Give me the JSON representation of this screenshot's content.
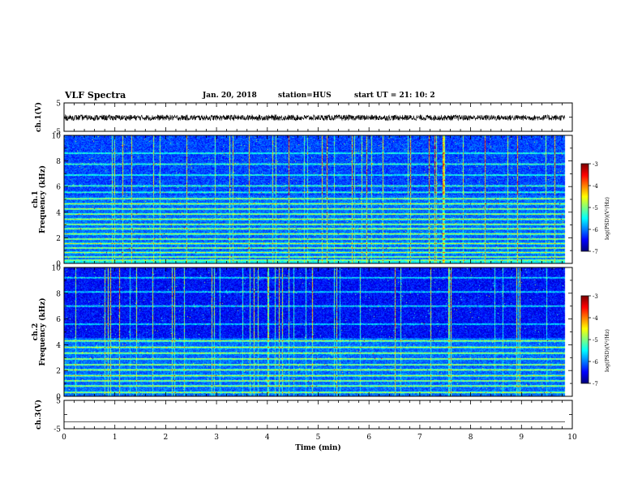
{
  "header": {
    "title": "VLF Spectra",
    "date": "Jan. 20, 2018",
    "station": "station=HUS",
    "start": "start UT =  21: 10: 2"
  },
  "chart_data": [
    {
      "type": "line",
      "name": "waveform-ch1",
      "ylabel": "ch.1(V)",
      "yticks": [
        5,
        -5
      ],
      "ylim": [
        -5,
        5
      ],
      "xlim": [
        0,
        10
      ],
      "x_end": 9.85,
      "level": -0.2,
      "noise": 1.0
    },
    {
      "type": "heatmap",
      "name": "spectrogram-ch1",
      "ylabel_top": "ch.1",
      "ylabel": "Frequency (kHz)",
      "yticks": [
        0,
        2,
        4,
        6,
        8,
        10
      ],
      "ylim": [
        0,
        10
      ],
      "xlim": [
        0,
        10
      ],
      "x_end": 9.85,
      "bands_kHz": [
        0.1,
        0.25,
        0.5,
        0.85,
        1.2,
        1.55,
        1.9,
        2.3,
        2.7,
        3.05,
        3.45,
        3.85,
        4.25,
        4.65,
        5.05,
        5.55,
        6.05,
        6.9,
        7.75,
        8.6
      ],
      "strong_below_kHz": 5.3,
      "colorbar": {
        "label": "log(PSD)(V²/Hz)",
        "ticks": [
          -3,
          -4,
          -5,
          -6,
          -7
        ],
        "range": [
          -7,
          -3
        ]
      }
    },
    {
      "type": "heatmap",
      "name": "spectrogram-ch2",
      "ylabel_top": "ch.2",
      "ylabel": "Frequency (kHz)",
      "yticks": [
        0,
        2,
        4,
        6,
        8,
        10
      ],
      "ylim": [
        0,
        10
      ],
      "xlim": [
        0,
        10
      ],
      "x_end": 9.85,
      "bands_kHz": [
        0.3,
        0.8,
        1.2,
        1.6,
        2.05,
        2.45,
        2.9,
        3.35,
        3.8,
        4.3,
        5.6,
        7.0,
        8.1,
        9.2
      ],
      "strong_below_kHz": 4.5,
      "colorbar": {
        "label": "log(PSD)(V²/Hz)",
        "ticks": [
          -3,
          -4,
          -5,
          -6,
          -7
        ],
        "range": [
          -7,
          -3
        ]
      }
    },
    {
      "type": "line",
      "name": "waveform-ch3",
      "ylabel": "ch.3(V)",
      "yticks": [
        5,
        -5
      ],
      "ylim": [
        -5,
        5
      ],
      "xlim": [
        0,
        10
      ],
      "x_end": 9.85,
      "level": -2.6,
      "noise": 0.0
    }
  ],
  "xaxis": {
    "label": "Time (min)",
    "ticks": [
      0,
      1,
      2,
      3,
      4,
      5,
      6,
      7,
      8,
      9,
      10
    ]
  },
  "colors": {
    "waveform": "#000000",
    "background": "#ffffff"
  }
}
